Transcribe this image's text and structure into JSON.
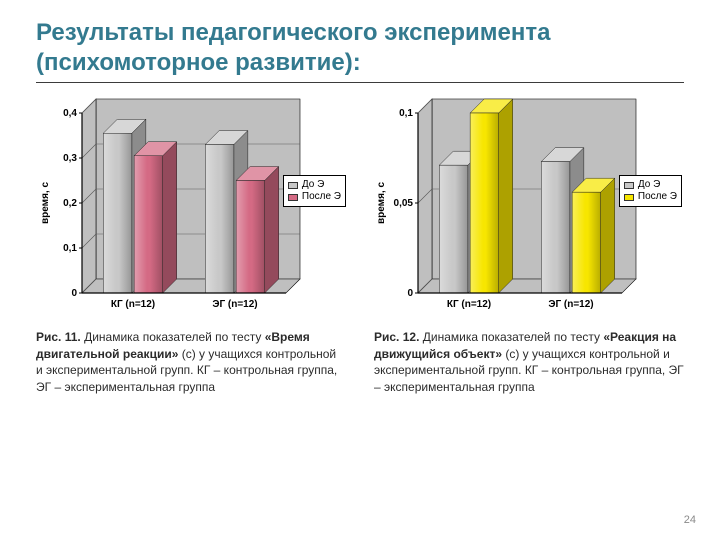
{
  "title_text": "Результаты педагогического эксперимента (психомоторное развитие):",
  "title_color": "#337a8f",
  "page_number": "24",
  "chart1": {
    "type": "bar",
    "ylabel": "время, с",
    "categories": [
      "КГ (n=12)",
      "ЭГ (n=12)"
    ],
    "ylim": [
      0,
      0.4
    ],
    "yticks": [
      0,
      0.1,
      0.2,
      0.3,
      0.4
    ],
    "ytick_labels": [
      "0",
      "0,1",
      "0,2",
      "0,3",
      "0,4"
    ],
    "series": [
      {
        "name": "До Э",
        "color": "#c8c8c8",
        "values": [
          0.355,
          0.33
        ]
      },
      {
        "name": "После Э",
        "color": "#d46a84",
        "values": [
          0.305,
          0.25
        ]
      }
    ],
    "bg_color": "#ffffff",
    "wall_color": "#bfbfbf",
    "grid_color": "#5a5a5a"
  },
  "chart2": {
    "type": "bar",
    "ylabel": "время, с",
    "categories": [
      "КГ (n=12)",
      "ЭГ (n=12)"
    ],
    "ylim": [
      0,
      0.1
    ],
    "yticks": [
      0,
      0.05,
      0.1
    ],
    "ytick_labels": [
      "0",
      "0,05",
      "0,1"
    ],
    "series": [
      {
        "name": "До Э",
        "color": "#c8c8c8",
        "values": [
          0.071,
          0.073
        ]
      },
      {
        "name": "После Э",
        "color": "#f7e600",
        "values": [
          0.1,
          0.056
        ]
      }
    ],
    "bg_color": "#ffffff",
    "wall_color": "#bfbfbf",
    "grid_color": "#5a5a5a"
  },
  "caption1": {
    "fig": "Рис. 11.",
    "lead": " Динамика показателей по тесту ",
    "bold": "«Время двигательной реакции»",
    "rest": " (с) у учащихся контрольной и экспериментальной групп. КГ – контрольная группа, ЭГ – экспериментальная группа"
  },
  "caption2": {
    "fig": "Рис. 12.",
    "lead": " Динамика показателей по тесту ",
    "bold": "«Реакция на движущийся объект»",
    "rest": " (с) у учащихся контрольной и экспериментальной групп. КГ – контрольная группа, ЭГ – экспериментальная группа"
  }
}
